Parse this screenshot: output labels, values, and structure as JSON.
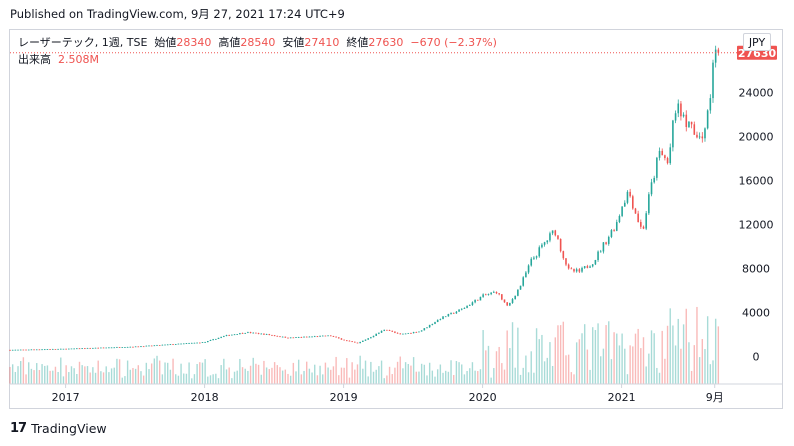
{
  "header": {
    "published": "Published on TradingView.com, 9月 27, 2021 17:24 UTC+9"
  },
  "legend": {
    "symbol": "レーザーテック, 1週, TSE",
    "open_label": "始値",
    "open": "28340",
    "high_label": "高値",
    "high": "28540",
    "low_label": "安値",
    "low": "27410",
    "close_label": "終値",
    "close": "27630",
    "change": "−670 (−2.37%)",
    "volume_label": "出来高",
    "volume": "2.508M"
  },
  "currency": "JPY",
  "footer": {
    "brand": "TradingView",
    "mark": "17"
  },
  "colors": {
    "up": "#26a69a",
    "down": "#ef5350",
    "last_price": "#ef5350",
    "grid_border": "#d1d4dc"
  },
  "chart_data": {
    "type": "candlestick",
    "interval": "weekly",
    "y_ticks": [
      0,
      4000,
      8000,
      12000,
      16000,
      20000,
      24000
    ],
    "y_tick_labels": [
      "0",
      "4000",
      "8000",
      "12000",
      "16000",
      "20000",
      "24000"
    ],
    "x_tick_labels": [
      "2017",
      "2018",
      "2019",
      "2020",
      "2021",
      "9月"
    ],
    "x_tick_positions": [
      2017.0,
      2018.0,
      2019.0,
      2020.0,
      2021.0,
      2021.67
    ],
    "x_range": [
      2016.6,
      2021.78
    ],
    "y_range": [
      -2500,
      29700
    ],
    "last_price": 27630,
    "last_price_label": "27630",
    "price_path": [
      [
        2016.6,
        600
      ],
      [
        2017.0,
        700
      ],
      [
        2017.5,
        900
      ],
      [
        2018.0,
        1300
      ],
      [
        2018.15,
        1900
      ],
      [
        2018.3,
        2200
      ],
      [
        2018.45,
        2000
      ],
      [
        2018.6,
        1700
      ],
      [
        2018.75,
        1800
      ],
      [
        2018.9,
        1900
      ],
      [
        2019.0,
        1500
      ],
      [
        2019.1,
        1200
      ],
      [
        2019.2,
        1800
      ],
      [
        2019.3,
        2500
      ],
      [
        2019.4,
        2000
      ],
      [
        2019.55,
        2300
      ],
      [
        2019.7,
        3500
      ],
      [
        2019.85,
        4300
      ],
      [
        2020.0,
        5500
      ],
      [
        2020.1,
        5900
      ],
      [
        2020.18,
        4500
      ],
      [
        2020.27,
        6400
      ],
      [
        2020.35,
        8700
      ],
      [
        2020.45,
        10400
      ],
      [
        2020.52,
        11500
      ],
      [
        2020.57,
        9500
      ],
      [
        2020.62,
        7800
      ],
      [
        2020.7,
        7700
      ],
      [
        2020.8,
        8700
      ],
      [
        2020.9,
        10800
      ],
      [
        2020.97,
        12300
      ],
      [
        2021.0,
        13700
      ],
      [
        2021.05,
        15100
      ],
      [
        2021.1,
        13100
      ],
      [
        2021.15,
        11300
      ],
      [
        2021.2,
        14700
      ],
      [
        2021.27,
        18500
      ],
      [
        2021.33,
        17800
      ],
      [
        2021.4,
        23500
      ],
      [
        2021.45,
        21400
      ],
      [
        2021.52,
        20300
      ],
      [
        2021.58,
        19500
      ],
      [
        2021.62,
        22300
      ],
      [
        2021.655,
        26000
      ],
      [
        2021.68,
        28800
      ],
      [
        2021.7,
        27630
      ]
    ]
  }
}
